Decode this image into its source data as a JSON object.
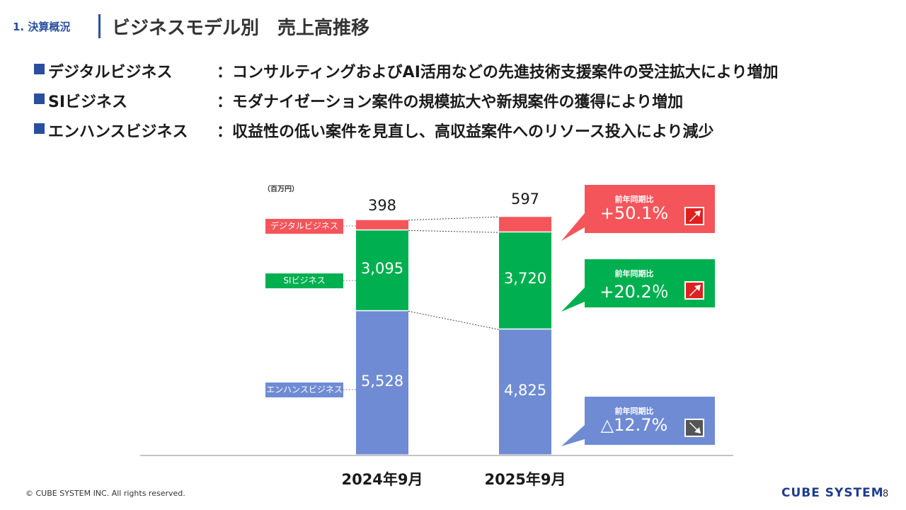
{
  "header": {
    "section": "1. 決算概況",
    "title": "ビジネスモデル別　売上高推移"
  },
  "bullets": [
    {
      "name": "デジタルビジネス",
      "colon": "：",
      "desc": "コンサルティングおよびAI活用などの先進技術支援案件の受注拡大により増加"
    },
    {
      "name": "SIビジネス",
      "colon": "：",
      "desc": "モダナイゼーション案件の規模拡大や新規案件の獲得により増加"
    },
    {
      "name": "エンハンスビジネス",
      "colon": "：",
      "desc": "収益性の低い案件を見直し、高収益案件へのリソース投入により減少"
    }
  ],
  "chart_data": {
    "type": "bar",
    "stacked": true,
    "unit_label": "（百万円）",
    "categories": [
      "2024年9月",
      "2025年9月"
    ],
    "series": [
      {
        "name": "エンハンスビジネス",
        "values": [
          5528,
          4825
        ],
        "labels": [
          "5,528",
          "4,825"
        ],
        "color": "#6f8bd3"
      },
      {
        "name": "SIビジネス",
        "values": [
          3095,
          3720
        ],
        "labels": [
          "3,095",
          "3,720"
        ],
        "color": "#00b050"
      },
      {
        "name": "デジタルビジネス",
        "values": [
          398,
          597
        ],
        "labels": [
          "398",
          "597"
        ],
        "color": "#f4555a"
      }
    ],
    "yoy": [
      {
        "series": "デジタルビジネス",
        "caption": "前年同期比",
        "value": "+50.1%",
        "direction": "up",
        "color": "#f4555a"
      },
      {
        "series": "SIビジネス",
        "caption": "前年同期比",
        "value": "+20.2％",
        "direction": "up",
        "color": "#00b050"
      },
      {
        "series": "エンハンスビジネス",
        "caption": "前年同期比",
        "value": "△12.7%",
        "direction": "down",
        "color": "#6f8bd3"
      }
    ]
  },
  "footer": {
    "copyright": "© CUBE SYSTEM INC. All rights reserved.",
    "logo": "CUBE SYSTEM",
    "page": "8"
  }
}
